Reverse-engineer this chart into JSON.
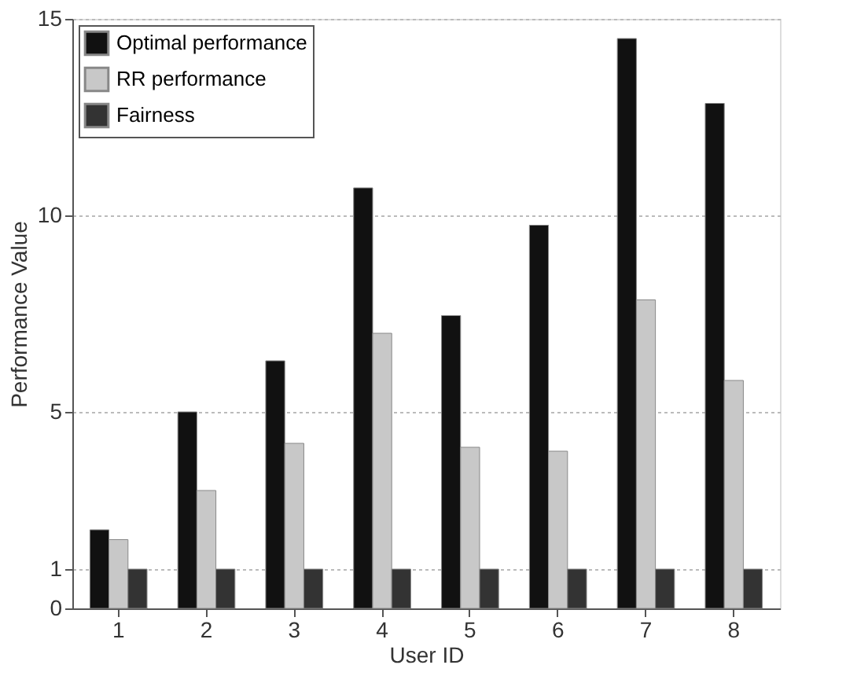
{
  "chart_data": {
    "type": "bar",
    "xlabel": "User ID",
    "ylabel": "Performance Value",
    "categories": [
      "1",
      "2",
      "3",
      "4",
      "5",
      "6",
      "7",
      "8"
    ],
    "series": [
      {
        "name": "Optimal performance",
        "color": "#111111",
        "values": [
          2.0,
          5.0,
          6.3,
          10.7,
          7.45,
          9.75,
          14.5,
          12.85
        ]
      },
      {
        "name": "RR performance",
        "color": "#c8c8c8",
        "values": [
          1.75,
          3.0,
          4.2,
          7.0,
          4.1,
          4.0,
          7.85,
          5.8
        ]
      },
      {
        "name": "Fairness",
        "color": "#333333",
        "values": [
          1,
          1,
          1,
          1,
          1,
          1,
          1,
          1
        ]
      }
    ],
    "ylim": [
      0,
      15
    ],
    "yticks": [
      0,
      1,
      5,
      10,
      15
    ],
    "grid": "y",
    "legend": "top left"
  }
}
